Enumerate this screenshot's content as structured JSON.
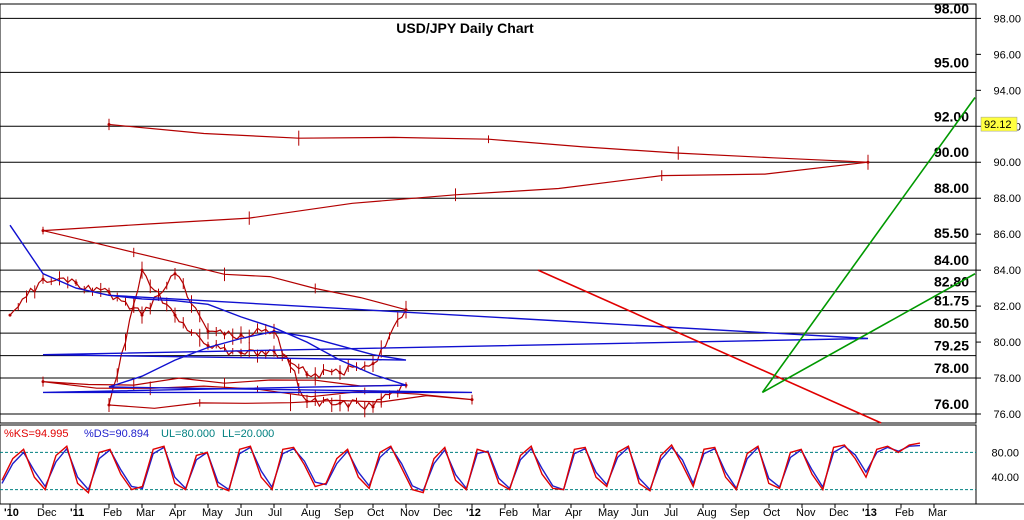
{
  "chart_data": {
    "type": "line",
    "title": "USD/JPY Daily Chart",
    "xlabel": "",
    "ylabel": "",
    "ylim": [
      75.5,
      98.8
    ],
    "x_ticks": [
      "'10",
      "Dec",
      "'11",
      "Feb",
      "Mar",
      "Apr",
      "May",
      "Jun",
      "Jul",
      "Aug",
      "Sep",
      "Oct",
      "Nov",
      "Dec",
      "'12",
      "Feb",
      "Mar",
      "Apr",
      "May",
      "Jun",
      "Jul",
      "Aug",
      "Sep",
      "Oct",
      "Nov",
      "Dec",
      "'13",
      "Feb",
      "Mar"
    ],
    "y_ticks": [
      "98.00",
      "96.00",
      "94.00",
      "92.00",
      "90.00",
      "88.00",
      "86.00",
      "84.00",
      "82.00",
      "80.00",
      "78.00",
      "76.00"
    ],
    "levels": [
      "98.00",
      "95.00",
      "92.00",
      "90.00",
      "88.00",
      "85.50",
      "84.00",
      "82.80",
      "81.75",
      "80.50",
      "79.25",
      "78.00",
      "76.00"
    ],
    "last_price": "92.12",
    "series": [
      {
        "x": [
          "'10",
          "Dec",
          "'11",
          "Feb",
          "Mar",
          "Apr",
          "May",
          "Jun",
          "Jul",
          "Aug",
          "Sep",
          "Oct",
          "Nov",
          "Dec",
          "'12",
          "Feb",
          "Mar",
          "Apr",
          "May",
          "Jun",
          "Jul",
          "Aug",
          "Sep",
          "Oct",
          "Nov",
          "Dec",
          "'13",
          "Feb"
        ],
        "values": [
          81.5,
          83.5,
          83.3,
          82.8,
          81.5,
          83.8,
          80.6,
          80.4,
          80.6,
          76.7,
          76.6,
          76.4,
          77.6,
          77.8,
          76.8,
          76.5,
          84.0,
          81.5,
          79.8,
          79.4,
          79.5,
          78.2,
          78.3,
          78.8,
          81.8,
          86.2,
          90.0,
          92.1
        ]
      },
      {
        "x": [
          "'10",
          "Dec",
          "'11",
          "Feb",
          "Mar",
          "Apr",
          "May",
          "Jun",
          "Jul",
          "Aug",
          "Sep",
          "Oct",
          "Nov",
          "Dec",
          "'12",
          "Feb",
          "Mar",
          "Apr",
          "May",
          "Jun",
          "Jul",
          "Aug",
          "Sep",
          "Oct",
          "Nov",
          "Dec",
          "'13",
          "Feb"
        ],
        "values": [
          86.5,
          83.8,
          83.0,
          82.6,
          82.4,
          82.3,
          82.1,
          81.4,
          80.8,
          80.0,
          79.0,
          78.2,
          77.6,
          77.2,
          77.2,
          77.5,
          78.1,
          79.0,
          79.7,
          80.2,
          80.6,
          80.3,
          79.8,
          79.3,
          79.0,
          79.3,
          80.2,
          82.6
        ]
      }
    ],
    "trendlines": [
      {
        "color": "#e00000",
        "from": [
          "Mar",
          84.0
        ],
        "to": [
          "Jan '13",
          75.5
        ]
      },
      {
        "color": "#009900",
        "from": [
          "Sep",
          77.2
        ],
        "to": [
          "Mar",
          93.6
        ]
      },
      {
        "color": "#009900",
        "from": [
          "Sep",
          77.2
        ],
        "to": [
          "Mar",
          83.8
        ]
      }
    ],
    "indicator": {
      "labels": {
        "ks": "%KS=94.995",
        "ds": "%DS=90.894",
        "ul": "UL=80.000",
        "ll": "LL=20.000"
      },
      "y_ticks": [
        "80.00",
        "40.00"
      ],
      "ylim": [
        0,
        100
      ],
      "upper": 80,
      "lower": 20,
      "ks": [
        35,
        70,
        85,
        40,
        20,
        75,
        90,
        30,
        15,
        80,
        85,
        45,
        20,
        25,
        85,
        90,
        30,
        20,
        75,
        80,
        25,
        18,
        85,
        90,
        40,
        20,
        85,
        88,
        60,
        25,
        30,
        70,
        85,
        40,
        22,
        80,
        90,
        55,
        20,
        15,
        70,
        88,
        35,
        20,
        85,
        80,
        30,
        20,
        75,
        90,
        45,
        22,
        20,
        85,
        88,
        40,
        25,
        80,
        90,
        30,
        18,
        75,
        92,
        60,
        25,
        85,
        88,
        40,
        20,
        78,
        90,
        30,
        22,
        80,
        85,
        45,
        20,
        88,
        92,
        70,
        40,
        85,
        90,
        80,
        92,
        95
      ],
      "ds": [
        30,
        62,
        80,
        50,
        25,
        65,
        86,
        40,
        20,
        70,
        84,
        52,
        25,
        22,
        78,
        88,
        40,
        22,
        68,
        80,
        32,
        20,
        78,
        88,
        50,
        24,
        78,
        86,
        66,
        32,
        28,
        62,
        82,
        48,
        26,
        72,
        88,
        62,
        26,
        18,
        62,
        84,
        44,
        22,
        78,
        82,
        38,
        22,
        68,
        86,
        54,
        26,
        20,
        78,
        86,
        48,
        28,
        72,
        88,
        38,
        20,
        68,
        88,
        68,
        30,
        78,
        86,
        48,
        22,
        70,
        88,
        38,
        24,
        72,
        84,
        52,
        24,
        80,
        90,
        76,
        48,
        80,
        88,
        82,
        90,
        91
      ]
    },
    "colors": {
      "price": "#b30000",
      "ma": "#1010d0",
      "resistance": "#e00000",
      "support": "#009900",
      "ks": "#e00000",
      "ds": "#2020cc",
      "band": "#008080",
      "last_price_bg": "#ffff40"
    },
    "grid": false,
    "legend": "top-left"
  }
}
